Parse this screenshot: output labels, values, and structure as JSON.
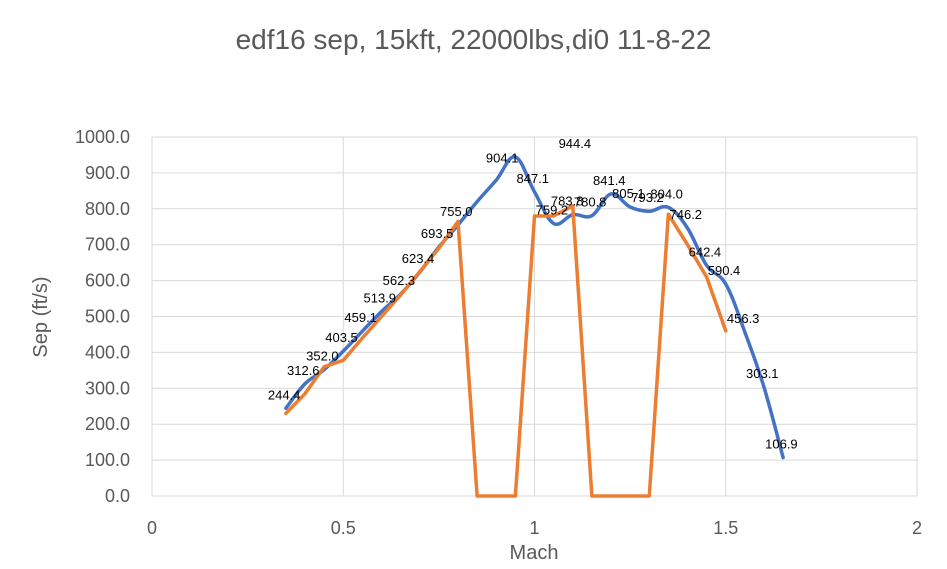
{
  "chart_data": {
    "type": "scatter",
    "title": "edf16 sep, 15kft, 22000lbs,di0 11-8-22",
    "xlabel": "Mach",
    "ylabel": "Sep (ft/s)",
    "xlim": [
      0,
      2
    ],
    "ylim": [
      0,
      1000
    ],
    "x_ticks": [
      "0",
      "0.5",
      "1",
      "1.5",
      "2"
    ],
    "y_ticks": [
      "0.0",
      "100.0",
      "200.0",
      "300.0",
      "400.0",
      "500.0",
      "600.0",
      "700.0",
      "800.0",
      "900.0",
      "1000.0"
    ],
    "grid": true,
    "series": [
      {
        "color": "#4472C4",
        "smooth": true,
        "points": [
          [
            0.35,
            244.4
          ],
          [
            0.4,
            312.6
          ],
          [
            0.45,
            352.0
          ],
          [
            0.5,
            403.5
          ],
          [
            0.55,
            459.1
          ],
          [
            0.6,
            513.9
          ],
          [
            0.65,
            562.3
          ],
          [
            0.7,
            623.4
          ],
          [
            0.75,
            693.5
          ],
          [
            0.8,
            755.0
          ],
          [
            0.85,
            820.0
          ],
          [
            0.9,
            880.0
          ],
          [
            0.95,
            944.4
          ],
          [
            1.0,
            847.1
          ],
          [
            1.05,
            759.2
          ],
          [
            1.1,
            783.8
          ],
          [
            1.15,
            780.8
          ],
          [
            1.2,
            841.4
          ],
          [
            1.25,
            805.1
          ],
          [
            1.3,
            793.2
          ],
          [
            1.35,
            804.0
          ],
          [
            1.4,
            746.2
          ],
          [
            1.45,
            642.4
          ],
          [
            1.5,
            590.4
          ],
          [
            1.55,
            456.3
          ],
          [
            1.6,
            303.1
          ],
          [
            1.65,
            106.9
          ]
        ]
      },
      {
        "color": "#ED7D31",
        "smooth": false,
        "points": [
          [
            0.35,
            230
          ],
          [
            0.4,
            285
          ],
          [
            0.45,
            360
          ],
          [
            0.5,
            378
          ],
          [
            0.55,
            440
          ],
          [
            0.6,
            500
          ],
          [
            0.65,
            560
          ],
          [
            0.7,
            625
          ],
          [
            0.75,
            690
          ],
          [
            0.8,
            765
          ],
          [
            0.85,
            0
          ],
          [
            0.9,
            0
          ],
          [
            0.95,
            0
          ],
          [
            1.0,
            780
          ],
          [
            1.05,
            780
          ],
          [
            1.1,
            808
          ],
          [
            1.15,
            0
          ],
          [
            1.2,
            0
          ],
          [
            1.25,
            0
          ],
          [
            1.3,
            0
          ],
          [
            1.35,
            785
          ],
          [
            1.4,
            700
          ],
          [
            1.45,
            610
          ],
          [
            1.5,
            460
          ]
        ]
      }
    ],
    "data_labels": [
      {
        "text": "244.4",
        "x": 0.35,
        "y": 244.4
      },
      {
        "text": "312.6",
        "x": 0.4,
        "y": 312.6
      },
      {
        "text": "352.0",
        "x": 0.45,
        "y": 352.0
      },
      {
        "text": "403.5",
        "x": 0.5,
        "y": 403.5
      },
      {
        "text": "459.1",
        "x": 0.55,
        "y": 459.1
      },
      {
        "text": "513.9",
        "x": 0.6,
        "y": 513.9
      },
      {
        "text": "562.3",
        "x": 0.65,
        "y": 562.3
      },
      {
        "text": "623.4",
        "x": 0.7,
        "y": 623.4
      },
      {
        "text": "693.5",
        "x": 0.75,
        "y": 693.5
      },
      {
        "text": "755.0",
        "x": 0.8,
        "y": 755.0
      },
      {
        "text": "904.1",
        "x": 0.92,
        "y": 904.1
      },
      {
        "text": "944.4",
        "x": 1.11,
        "y": 944.4
      },
      {
        "text": "847.1",
        "x": 1.0,
        "y": 847.1
      },
      {
        "text": "759.2",
        "x": 1.05,
        "y": 759.2
      },
      {
        "text": "783.8",
        "x": 1.09,
        "y": 783.8
      },
      {
        "text": "780.8",
        "x": 1.15,
        "y": 780.8
      },
      {
        "text": "841.4",
        "x": 1.2,
        "y": 841.4
      },
      {
        "text": "805.1",
        "x": 1.25,
        "y": 805.1
      },
      {
        "text": "793.2",
        "x": 1.3,
        "y": 793.2
      },
      {
        "text": "804.0",
        "x": 1.35,
        "y": 804.0
      },
      {
        "text": "746.2",
        "x": 1.4,
        "y": 746.2
      },
      {
        "text": "642.4",
        "x": 1.45,
        "y": 642.4
      },
      {
        "text": "590.4",
        "x": 1.5,
        "y": 590.4
      },
      {
        "text": "456.3",
        "x": 1.55,
        "y": 456.3
      },
      {
        "text": "303.1",
        "x": 1.6,
        "y": 303.1
      },
      {
        "text": "106.9",
        "x": 1.65,
        "y": 106.9
      }
    ]
  }
}
